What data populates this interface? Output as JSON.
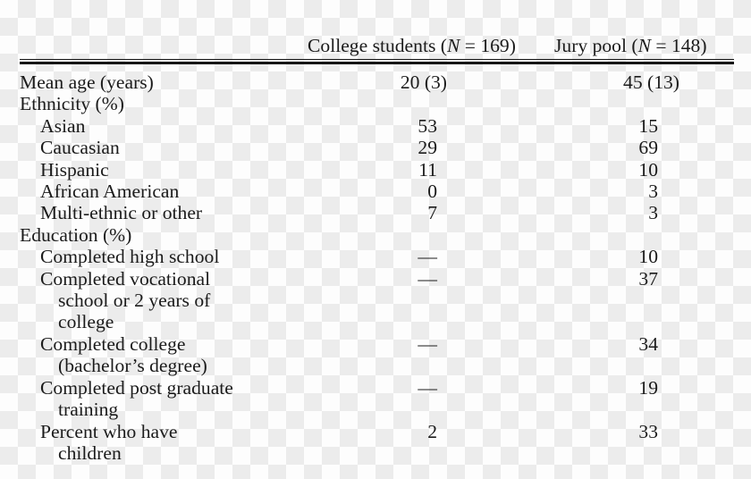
{
  "chart_data": {
    "type": "table",
    "title": "",
    "columns": [
      "",
      "College students (N = 169)",
      "Jury pool (N = 148)"
    ],
    "rows": [
      {
        "label": "Mean age (years)",
        "college_students": "20 (3)",
        "jury_pool": "45 (13)"
      },
      {
        "label": "Ethnicity (%)",
        "college_students": "",
        "jury_pool": ""
      },
      {
        "label": "Asian",
        "college_students": "53",
        "jury_pool": "15"
      },
      {
        "label": "Caucasian",
        "college_students": "29",
        "jury_pool": "69"
      },
      {
        "label": "Hispanic",
        "college_students": "11",
        "jury_pool": "10"
      },
      {
        "label": "African American",
        "college_students": "0",
        "jury_pool": "3"
      },
      {
        "label": "Multi-ethnic or other",
        "college_students": "7",
        "jury_pool": "3"
      },
      {
        "label": "Education (%)",
        "college_students": "",
        "jury_pool": ""
      },
      {
        "label": "Completed high school",
        "college_students": "—",
        "jury_pool": "10"
      },
      {
        "label": "Completed vocational school or 2 years of college",
        "college_students": "—",
        "jury_pool": "37"
      },
      {
        "label": "Completed college (bachelor’s degree)",
        "college_students": "—",
        "jury_pool": "34"
      },
      {
        "label": "Completed post graduate training",
        "college_students": "—",
        "jury_pool": "19"
      },
      {
        "label": "Percent who have children",
        "college_students": "2",
        "jury_pool": "33"
      }
    ]
  },
  "table": {
    "header": {
      "college": {
        "pre": "College students (",
        "n": "N",
        "post": " = 169)"
      },
      "jury": {
        "pre": "Jury pool (",
        "n": "N",
        "post": " = 148)"
      }
    },
    "rows": [
      {
        "label": "Mean age (years)",
        "indent": 0,
        "style": "mean",
        "col1": "20 (3)",
        "col2": "45 (13)"
      },
      {
        "label": "Ethnicity (%)",
        "indent": 0,
        "col1": "",
        "col2": ""
      },
      {
        "label": "Asian",
        "indent": 1,
        "col1": "53",
        "col2": "15"
      },
      {
        "label": "Caucasian",
        "indent": 1,
        "col1": "29",
        "col2": "69"
      },
      {
        "label": "Hispanic",
        "indent": 1,
        "col1": "11",
        "col2": "10"
      },
      {
        "label": "African American",
        "indent": 1,
        "col1": "0",
        "col2": "3"
      },
      {
        "label": "Multi-ethnic or other",
        "indent": 1,
        "col1": "7",
        "col2": "3"
      },
      {
        "label": "Education (%)",
        "indent": 0,
        "col1": "",
        "col2": ""
      },
      {
        "label": "Completed high school",
        "indent": 1,
        "col1": "—",
        "col2": "10"
      },
      {
        "label": "Completed vocational\nschool or 2 years of\ncollege",
        "indent": 1,
        "col1": "—",
        "col2": "37"
      },
      {
        "label": "Completed college\n(bachelor’s degree)",
        "indent": 1,
        "col1": "—",
        "col2": "34"
      },
      {
        "label": "Completed post graduate\ntraining",
        "indent": 1,
        "col1": "—",
        "col2": "19"
      },
      {
        "label": "Percent who have\nchildren",
        "indent": 1,
        "col1": "2",
        "col2": "33"
      }
    ]
  },
  "colors": {
    "text": "#1b1b1b",
    "rule": "#161616",
    "checker_light": "#fdfdfd",
    "checker_dark": "#ececec"
  }
}
